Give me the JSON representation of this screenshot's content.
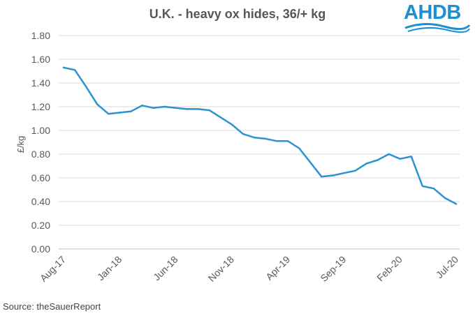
{
  "title": "U.K. - heavy ox hides, 36/+ kg",
  "logo_text": "AHDB",
  "source": "Source: theSauerReport",
  "colors": {
    "line": "#2a93d0",
    "grid": "#d9d9d9",
    "text": "#595959",
    "brand": "#1a8fd4"
  },
  "chart_data": {
    "type": "line",
    "title": "U.K. - heavy ox hides, 36/+ kg",
    "xlabel": "",
    "ylabel": "£/kg",
    "ylim": [
      0,
      1.8
    ],
    "yticks": [
      "0.00",
      "0.20",
      "0.40",
      "0.60",
      "0.80",
      "1.00",
      "1.20",
      "1.40",
      "1.60",
      "1.80"
    ],
    "ytick_values": [
      0,
      0.2,
      0.4,
      0.6,
      0.8,
      1.0,
      1.2,
      1.4,
      1.6,
      1.8
    ],
    "xtick_labels": [
      "Aug-17",
      "Jan-18",
      "Jun-18",
      "Nov-18",
      "Apr-19",
      "Sep-19",
      "Feb-20",
      "Jul-20"
    ],
    "grid": true,
    "legend": "none",
    "series": [
      {
        "values": [
          1.53,
          1.51,
          1.37,
          1.22,
          1.14,
          1.15,
          1.16,
          1.21,
          1.19,
          1.2,
          1.19,
          1.18,
          1.18,
          1.17,
          1.11,
          1.05,
          0.97,
          0.94,
          0.93,
          0.91,
          0.91,
          0.85,
          0.73,
          0.61,
          0.62,
          0.64,
          0.66,
          0.72,
          0.75,
          0.8,
          0.76,
          0.78,
          0.53,
          0.51,
          0.43,
          0.38
        ]
      }
    ]
  }
}
